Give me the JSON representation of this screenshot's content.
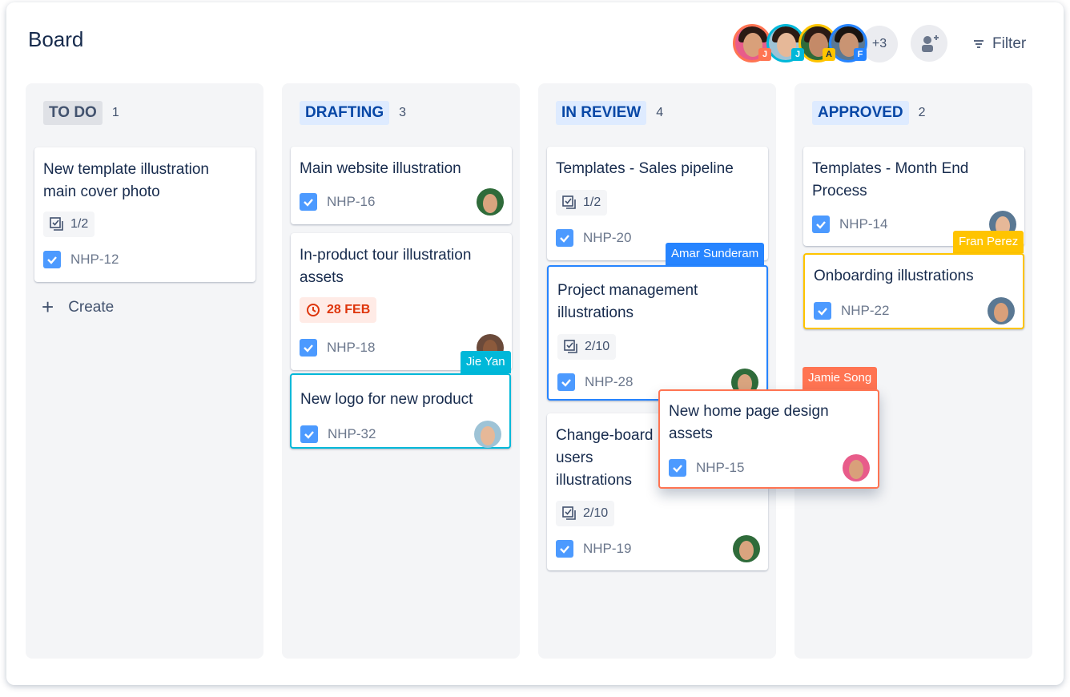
{
  "header": {
    "title": "Board",
    "more_count": "+3",
    "filter_label": "Filter",
    "avatars": [
      {
        "initial": "J",
        "color": "#ff7452"
      },
      {
        "initial": "J",
        "color": "#00b8d9"
      },
      {
        "initial": "A",
        "color": "#ffc400"
      },
      {
        "initial": "F",
        "color": "#2684ff"
      }
    ]
  },
  "columns": [
    {
      "name": "TO DO",
      "count": "1",
      "create_label": "Create"
    },
    {
      "name": "DRAFTING",
      "count": "3"
    },
    {
      "name": "IN REVIEW",
      "count": "4"
    },
    {
      "name": "APPROVED",
      "count": "2"
    }
  ],
  "cards": {
    "c12": {
      "title": "New template illustration main cover photo",
      "checklist": "1/2",
      "key": "NHP-12"
    },
    "c16": {
      "title": "Main website illustration",
      "key": "NHP-16"
    },
    "c18": {
      "title": "In-product tour illustration assets",
      "due": "28 FEB",
      "key": "NHP-18"
    },
    "c32": {
      "title": "New logo for new product",
      "key": "NHP-32",
      "viewer": "Jie Yan"
    },
    "c20": {
      "title": "Templates - Sales pipeline",
      "checklist": "1/2",
      "key": "NHP-20"
    },
    "c28": {
      "title": "Project management illustrations",
      "checklist": "2/10",
      "key": "NHP-28",
      "viewer": "Amar Sunderam"
    },
    "c19": {
      "title": "Change-board users illustrations",
      "checklist": "2/10",
      "key": "NHP-19"
    },
    "c14": {
      "title": "Templates - Month End Process",
      "key": "NHP-14"
    },
    "c22": {
      "title": "Onboarding illustrations",
      "key": "NHP-22",
      "viewer": "Fran Perez"
    },
    "c15": {
      "title": "New home page design assets",
      "key": "NHP-15",
      "viewer": "Jamie Song"
    }
  },
  "colors": {
    "todo": "#dfe1e6",
    "drafting": "#deebff",
    "in_review": "#deebff",
    "approved": "#deebff",
    "jie": "#00b8d9",
    "amar": "#2684ff",
    "fran": "#ffc400",
    "jamie": "#ff7452"
  }
}
